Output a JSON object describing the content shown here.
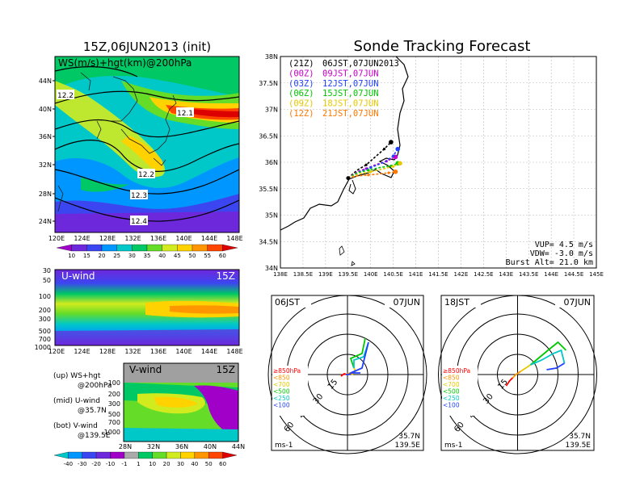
{
  "main_title": "Sonde Tracking Forecast",
  "left_panel": {
    "title": "15Z,06JUN2013 (init)",
    "map_label": "WS(m/s)+hgt(km)@200hPa",
    "lat_ticks": [
      "44N",
      "40N",
      "36N",
      "32N",
      "28N",
      "24N"
    ],
    "lon_ticks": [
      "120E",
      "124E",
      "128E",
      "132E",
      "136E",
      "140E",
      "144E",
      "148E"
    ],
    "contour_labels": [
      "12.2",
      "12.1",
      "12.2",
      "12.3",
      "12.4"
    ],
    "colorbar_ticks": [
      "10",
      "15",
      "20",
      "25",
      "30",
      "35",
      "40",
      "45",
      "50",
      "55",
      "60"
    ],
    "colorbar_colors": [
      "#a000c8",
      "#6e28dc",
      "#3c46f0",
      "#0096ff",
      "#00c8c8",
      "#00c864",
      "#64dc28",
      "#d2eb1e",
      "#ffd200",
      "#ff9600",
      "#ff4600",
      "#dc0000"
    ]
  },
  "uwind_panel": {
    "label": "U-wind",
    "time": "15Z",
    "level_ticks": [
      "30",
      "50",
      "100",
      "200",
      "300",
      "500",
      "700",
      "1000"
    ],
    "lon_ticks": [
      "120E",
      "124E",
      "128E",
      "132E",
      "136E",
      "140E",
      "144E",
      "148E"
    ]
  },
  "legend_notes": [
    {
      "head": "(up) WS+hgt",
      "sub": "@200hPa"
    },
    {
      "head": "(mid) U-wind",
      "sub": "@35.7N"
    },
    {
      "head": "(bot) V-wind",
      "sub": "@139.5E"
    }
  ],
  "vwind_panel": {
    "label": "V-wind",
    "time": "15Z",
    "level_ticks": [
      "100",
      "200",
      "300",
      "500",
      "700",
      "1000"
    ],
    "lat_ticks": [
      "28N",
      "32N",
      "36N",
      "40N",
      "44N"
    ],
    "colorbar_ticks": [
      "-40",
      "-30",
      "-20",
      "-10",
      "-1",
      "1",
      "10",
      "20",
      "30",
      "40",
      "50",
      "60"
    ],
    "colorbar_colors": [
      "#00c8c8",
      "#0096ff",
      "#3c46f0",
      "#6e28dc",
      "#a000c8",
      "#aaaaaa",
      "#00c864",
      "#64dc28",
      "#d2eb1e",
      "#ffd200",
      "#ff9600",
      "#ff4600",
      "#dc0000"
    ]
  },
  "track_map": {
    "lat_ticks": [
      "38N",
      "37.5N",
      "37N",
      "36.5N",
      "36N",
      "35.5N",
      "35N",
      "34.5N",
      "34N"
    ],
    "lon_ticks": [
      "138E",
      "138.5E",
      "139E",
      "139.5E",
      "140E",
      "140.5E",
      "141E",
      "141.5E",
      "142E",
      "142.5E",
      "143E",
      "143.5E",
      "144E",
      "144.5E",
      "145E"
    ],
    "launches": [
      {
        "utc": "(21Z)",
        "jst": "06JST,07JUN2013",
        "color": "#000000"
      },
      {
        "utc": "(00Z)",
        "jst": "09JST,07JUN",
        "color": "#c800c8"
      },
      {
        "utc": "(03Z)",
        "jst": "12JST,07JUN",
        "color": "#2040ff"
      },
      {
        "utc": "(06Z)",
        "jst": "15JST,07JUN",
        "color": "#00c800"
      },
      {
        "utc": "(09Z)",
        "jst": "18JST,07JUN",
        "color": "#e6c800"
      },
      {
        "utc": "(12Z)",
        "jst": "21JST,07JUN",
        "color": "#ff7800"
      }
    ],
    "stats": [
      "VUP= 4.5 m/s",
      "VDW= -3.0 m/s",
      "Burst Alt= 21.0 km"
    ]
  },
  "hodographs": [
    {
      "time": "06JST",
      "date": "07JUN",
      "lat": "35.7N",
      "lon": "139.5E",
      "unit": "ms-1",
      "ring_labels": [
        "15",
        "30",
        "45",
        "60"
      ],
      "levels": [
        {
          "text": "≥850hPa",
          "color": "#ff0000"
        },
        {
          "text": "<850",
          "color": "#ff9600"
        },
        {
          "text": "<700",
          "color": "#e6c800"
        },
        {
          "text": "<500",
          "color": "#00c800"
        },
        {
          "text": "<250",
          "color": "#00c8c8"
        },
        {
          "text": "<100",
          "color": "#2040ff"
        }
      ]
    },
    {
      "time": "18JST",
      "date": "07JUN",
      "lat": "35.7N",
      "lon": "139.5E",
      "unit": "ms-1",
      "ring_labels": [
        "15",
        "30",
        "45",
        "60"
      ],
      "levels": [
        {
          "text": "≥850hPa",
          "color": "#ff0000"
        },
        {
          "text": "<850",
          "color": "#ff9600"
        },
        {
          "text": "<700",
          "color": "#e6c800"
        },
        {
          "text": "<500",
          "color": "#00c800"
        },
        {
          "text": "<250",
          "color": "#00c8c8"
        },
        {
          "text": "<100",
          "color": "#2040ff"
        }
      ]
    }
  ],
  "chart_data": [
    {
      "type": "line",
      "title": "Sonde Tracking Forecast",
      "xlabel": "",
      "ylabel": "",
      "xlim": [
        138,
        145
      ],
      "ylim": [
        34,
        38
      ],
      "series": [
        {
          "name": "(21Z) 06JST,07JUN2013",
          "color": "#000000",
          "x": [
            139.5,
            139.7,
            139.9,
            140.1,
            140.3,
            140.45
          ],
          "y": [
            35.7,
            35.85,
            35.95,
            36.1,
            36.25,
            36.38
          ]
        },
        {
          "name": "(00Z) 09JST,07JUN",
          "color": "#c800c8",
          "x": [
            139.5,
            139.7,
            139.9,
            140.1,
            140.35,
            140.55
          ],
          "y": [
            35.7,
            35.82,
            35.88,
            35.95,
            36.02,
            36.1
          ]
        },
        {
          "name": "(03Z) 12JST,07JUN",
          "color": "#2040ff",
          "x": [
            139.5,
            139.75,
            140.0,
            140.3,
            140.5,
            140.6
          ],
          "y": [
            35.7,
            35.82,
            35.9,
            36.0,
            36.12,
            36.25
          ]
        },
        {
          "name": "(06Z) 15JST,07JUN",
          "color": "#00c800",
          "x": [
            139.5,
            139.7,
            139.95,
            140.2,
            140.45,
            140.6
          ],
          "y": [
            35.7,
            35.8,
            35.85,
            35.9,
            35.93,
            35.98
          ]
        },
        {
          "name": "(09Z) 18JST,07JUN",
          "color": "#e6c800",
          "x": [
            139.5,
            139.75,
            140.0,
            140.25,
            140.5,
            140.65
          ],
          "y": [
            35.7,
            35.78,
            35.82,
            35.87,
            35.92,
            35.98
          ]
        },
        {
          "name": "(12Z) 21JST,07JUN",
          "color": "#ff7800",
          "x": [
            139.5,
            139.7,
            139.95,
            140.2,
            140.4,
            140.55
          ],
          "y": [
            35.7,
            35.74,
            35.76,
            35.78,
            35.8,
            35.82
          ]
        }
      ]
    }
  ]
}
